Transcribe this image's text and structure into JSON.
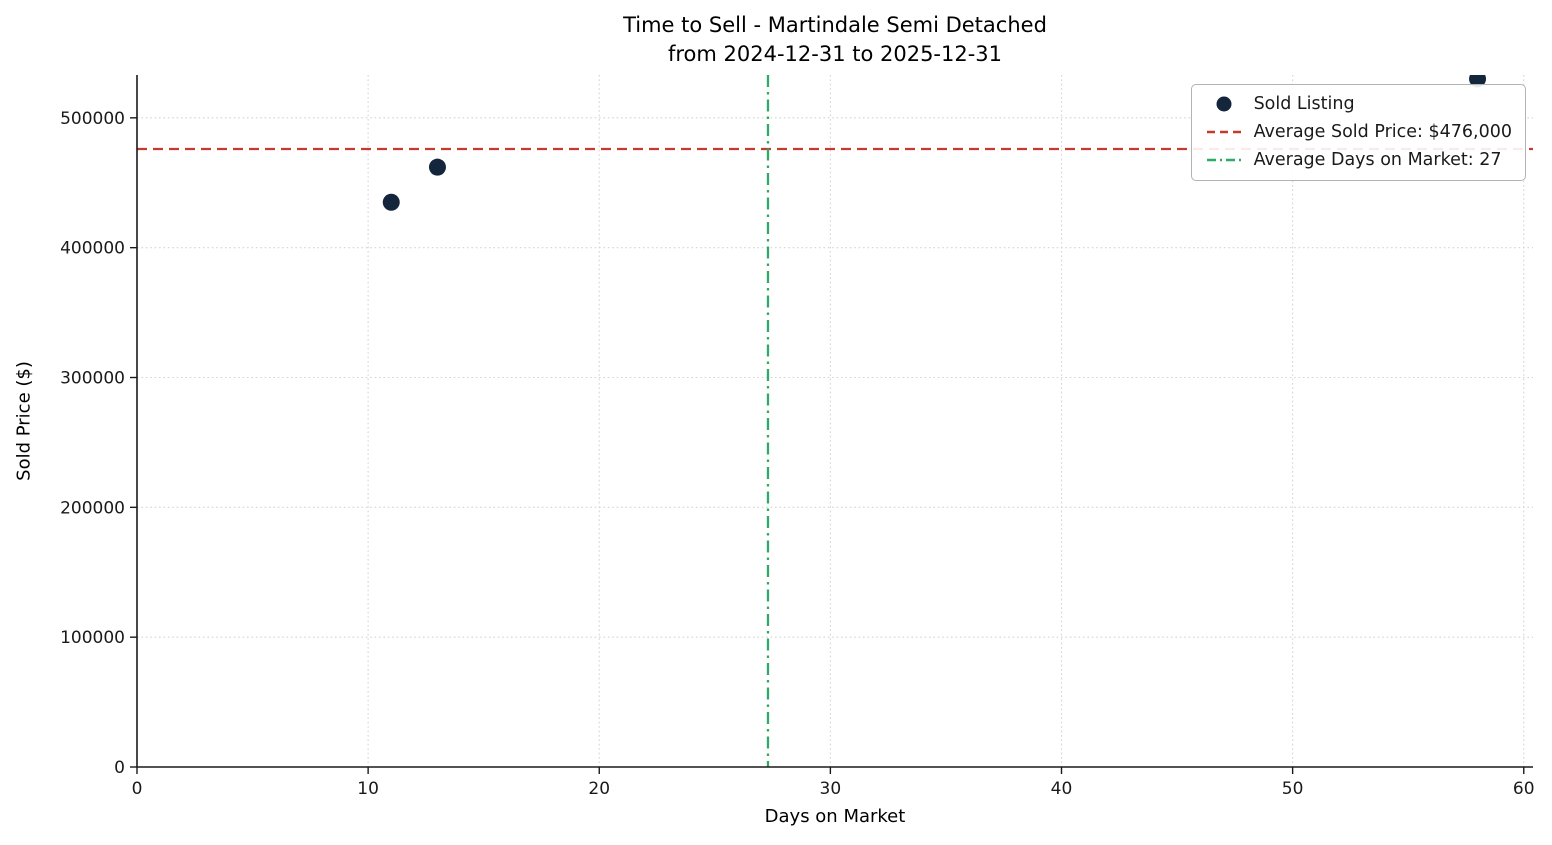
{
  "chart_data": {
    "type": "scatter",
    "title": "Time to Sell - Martindale Semi Detached",
    "subtitle": "from 2024-12-31 to 2025-12-31",
    "xlabel": "Days on Market",
    "ylabel": "Sold Price ($)",
    "xlim": [
      0,
      60.4
    ],
    "ylim": [
      0,
      533000
    ],
    "xticks": [
      0,
      10,
      20,
      30,
      40,
      50,
      60
    ],
    "yticks": [
      0,
      100000,
      200000,
      300000,
      400000,
      500000
    ],
    "grid": true,
    "grid_style": "dotted",
    "legend_position": "upper right",
    "series": [
      {
        "name": "Sold Listing",
        "marker": "circle",
        "color": "#14263c",
        "points": [
          {
            "x": 11,
            "y": 435000
          },
          {
            "x": 13,
            "y": 462000
          },
          {
            "x": 58,
            "y": 530000
          }
        ]
      }
    ],
    "reference_lines": [
      {
        "label": "Average Sold Price: $476,000",
        "orientation": "horizontal",
        "value": 476000,
        "color": "#c23b2c",
        "style": "dashed"
      },
      {
        "label": "Average Days on Market: 27",
        "orientation": "vertical",
        "value": 27.3,
        "color": "#2fa968",
        "style": "dashdot"
      }
    ],
    "colors": {
      "grid": "#d4d4d4",
      "spine": "#1a1a1a",
      "tick_label": "#1a1a1a",
      "background": "#ffffff"
    }
  }
}
